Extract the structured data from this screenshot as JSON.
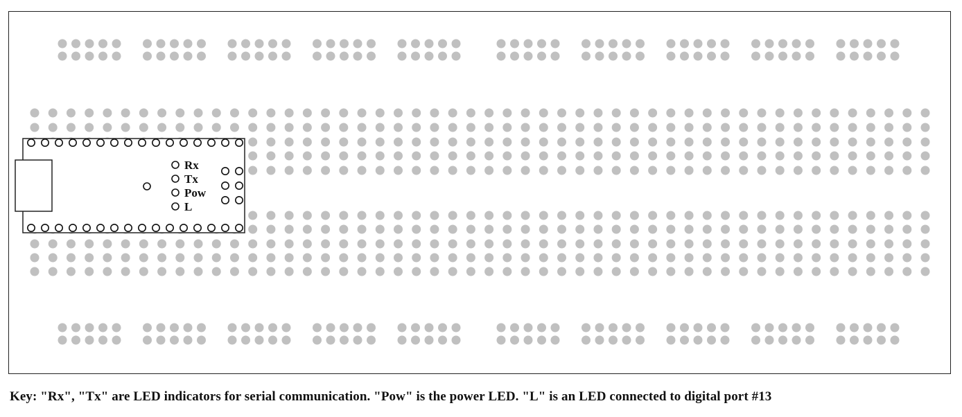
{
  "board": {
    "hole_color": "#c0c0c0",
    "outline_color": "#222222",
    "power_rail_groups_per_side": 10,
    "power_rail_holes_per_group": 5,
    "terminal_columns": 50,
    "terminal_rows_per_half": 5
  },
  "arduino": {
    "header_pins_per_row": 16,
    "icsp_pins": 6,
    "leds": [
      {
        "label": "Rx"
      },
      {
        "label": "Tx"
      },
      {
        "label": "Pow"
      },
      {
        "label": "L"
      }
    ]
  },
  "caption": "Key:  \"Rx\", \"Tx\" are LED indicators for serial communication. \"Pow\" is the power LED. \"L\" is an LED connected to digital port #13"
}
